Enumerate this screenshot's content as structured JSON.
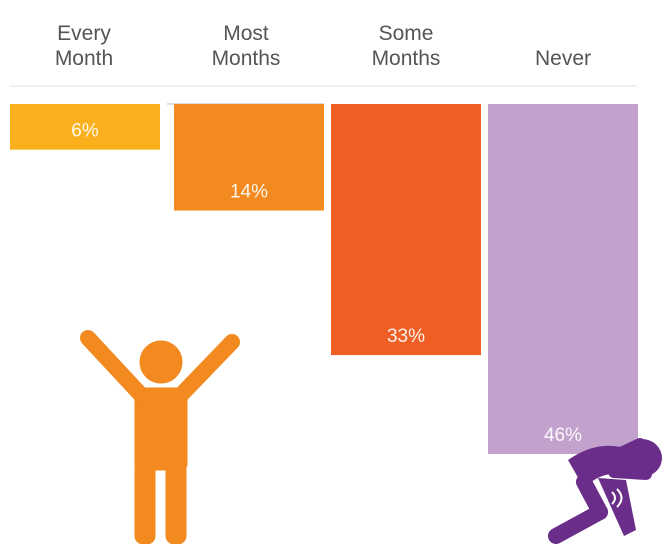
{
  "chart_data": {
    "type": "bar",
    "orientation": "vertical-hanging",
    "categories": [
      [
        "Every",
        "Month"
      ],
      [
        "Most",
        "Months"
      ],
      [
        "Some",
        "Months"
      ],
      [
        "Never"
      ]
    ],
    "values": [
      6,
      14,
      33,
      46
    ],
    "value_labels": [
      "6%",
      "14%",
      "33%",
      "46%"
    ],
    "colors": [
      "#F9B01C",
      "#F28A20",
      "#EF5F24",
      "#C2A2CD"
    ],
    "ylim": [
      0,
      46
    ],
    "title": "",
    "xlabel": "",
    "ylabel": "",
    "grid": false,
    "legend": "none"
  },
  "illustrations": [
    {
      "name": "happy-person-icon",
      "color": "#F28A20"
    },
    {
      "name": "stressed-person-icon",
      "color": "#6B2D8A"
    }
  ]
}
